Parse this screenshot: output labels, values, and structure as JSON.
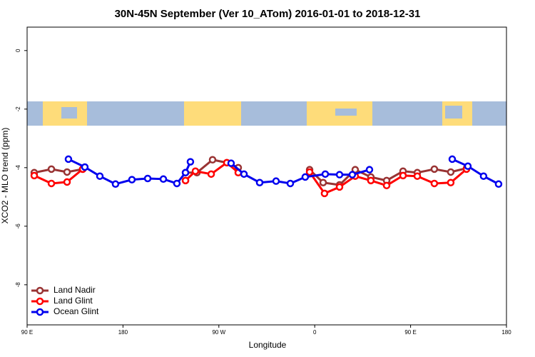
{
  "chart_data": {
    "type": "line",
    "title": "30N-45N September (Ver 10_ATom)   2016-01-01 to 2018-12-31",
    "x_label": "Longitude",
    "y_label": "XCO2 - MLO trend (ppm)",
    "xlim": [
      90,
      540
    ],
    "ylim": [
      -9.37,
      0.8
    ],
    "xticks": [
      {
        "value": 90,
        "label": "90 E"
      },
      180,
      {
        "value": 270,
        "label": "90 W"
      },
      {
        "value": 360,
        "label": "0"
      },
      {
        "value": 450,
        "label": "90 E"
      },
      {
        "value": 540,
        "label": "180"
      }
    ],
    "yticks": [
      0,
      -2,
      -4,
      -6,
      -8
    ],
    "legend": "bottom-left",
    "series": [
      {
        "name": "Land Nadir",
        "color": "#993333",
        "x": [
          96.7,
          112.8,
          127.5,
          142.2,
          null,
          238.7,
          249.4,
          264.1,
          277.5,
          288.2,
          null,
          355.2,
          367.9,
          383.3,
          398.0,
          412.7,
          427.5,
          442.9,
          456.3,
          472.3,
          487.7,
          502.5
        ],
        "values": [
          -4.17,
          -4.05,
          -4.15,
          -4.05,
          null,
          -4.17,
          -4.17,
          -3.73,
          -3.83,
          -4.0,
          null,
          -4.07,
          -4.51,
          -4.59,
          -4.07,
          -4.32,
          -4.44,
          -4.12,
          -4.17,
          -4.05,
          -4.15,
          -4.02
        ]
      },
      {
        "name": "Land Glint",
        "color": "#ff0000",
        "x": [
          96.7,
          112.8,
          127.5,
          142.2,
          null,
          238.7,
          248.0,
          262.8,
          277.5,
          288.2,
          null,
          355.2,
          369.2,
          383.3,
          398.0,
          412.7,
          427.5,
          442.9,
          456.3,
          472.3,
          487.7,
          502.5
        ],
        "values": [
          -4.27,
          -4.54,
          -4.49,
          -4.05,
          null,
          -4.44,
          -4.12,
          -4.22,
          -3.83,
          -4.17,
          null,
          -4.15,
          -4.88,
          -4.66,
          -4.29,
          -4.44,
          -4.61,
          -4.27,
          -4.29,
          -4.54,
          -4.51,
          -4.05
        ]
      },
      {
        "name": "Ocean Glint",
        "color": "#0000ee",
        "x": [
          128.8,
          144.2,
          158.3,
          173.0,
          188.4,
          203.2,
          217.9,
          230.6,
          238.7,
          243.3,
          null,
          281.5,
          293.6,
          308.3,
          323.7,
          337.1,
          351.1,
          369.9,
          383.3,
          395.3,
          411.4,
          null,
          489.1,
          503.8,
          518.5,
          532.6
        ],
        "values": [
          -3.71,
          -3.98,
          -4.29,
          -4.56,
          -4.41,
          -4.37,
          -4.39,
          -4.54,
          -4.17,
          -3.8,
          null,
          -3.85,
          -4.22,
          -4.51,
          -4.46,
          -4.54,
          -4.32,
          -4.22,
          -4.24,
          -4.24,
          -4.07,
          null,
          -3.71,
          -3.95,
          -4.29,
          -4.56
        ]
      }
    ]
  }
}
